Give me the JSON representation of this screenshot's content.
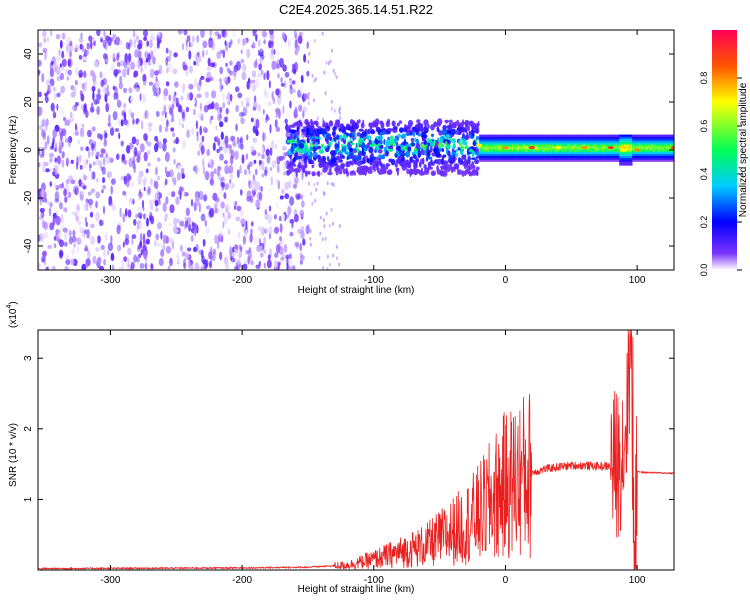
{
  "title": "C2E4.2025.365.14.51.R22",
  "chart_data": [
    {
      "type": "heatmap",
      "xlabel": "Height of straight line (km)",
      "ylabel": "Frequency (Hz)",
      "xlim": [
        -355,
        128
      ],
      "ylim": [
        -50,
        50
      ],
      "xticks": [
        -300,
        -200,
        -100,
        0,
        100
      ],
      "yticks": [
        -40,
        -20,
        0,
        20,
        40
      ],
      "colorbar": {
        "label": "Normalized spectral amplitude",
        "range": [
          0,
          1
        ],
        "ticks": [
          "0.0",
          "0.2",
          "0.4",
          "0.6",
          "0.8"
        ],
        "colors": [
          "#ffffff",
          "#5500ff",
          "#0000ff",
          "#00ccff",
          "#00ff55",
          "#ffff00",
          "#ff6600",
          "#ff0044"
        ]
      },
      "regions": [
        {
          "x_range": [
            -355,
            -150
          ],
          "freq_range": [
            -50,
            50
          ],
          "description_level": "low",
          "amplitude_max": 0.12
        },
        {
          "x_range": [
            -165,
            -20
          ],
          "freq_range": [
            -10,
            12
          ],
          "amplitude_max": 0.5
        },
        {
          "x_range": [
            -20,
            128
          ],
          "freq_range": [
            -5,
            5
          ],
          "amplitude_max": 0.95
        }
      ],
      "ridge": {
        "x": [
          -20,
          0,
          20,
          40,
          60,
          80,
          90,
          100,
          128
        ],
        "freq": [
          2,
          1,
          1,
          1,
          1,
          1,
          0,
          0,
          1
        ]
      }
    },
    {
      "type": "line",
      "xlabel": "Height of straight line (km)",
      "ylabel": "SNR (10 * v/v)",
      "yscale_label": "(x10",
      "yscale_exp": "4",
      "xlim": [
        -355,
        128
      ],
      "ylim": [
        0,
        3.4
      ],
      "xticks": [
        -300,
        -200,
        -100,
        0,
        100
      ],
      "yticks": [
        1,
        2,
        3
      ],
      "color": "#e8201f",
      "series": [
        {
          "x": [
            -355,
            -200,
            -150,
            -120,
            -100,
            -80,
            -60,
            -50,
            -40,
            -30,
            -20,
            -10,
            0,
            10,
            20,
            30,
            40,
            50,
            60,
            70,
            80,
            85,
            90,
            92,
            95,
            98,
            100,
            105,
            110,
            128
          ],
          "values": [
            0.02,
            0.03,
            0.04,
            0.07,
            0.15,
            0.25,
            0.35,
            0.45,
            0.55,
            0.65,
            0.8,
            1.0,
            1.2,
            1.3,
            1.38,
            1.43,
            1.46,
            1.48,
            1.48,
            1.47,
            1.47,
            1.5,
            1.8,
            2.2,
            3.3,
            0.2,
            1.4,
            1.38,
            1.38,
            1.37
          ]
        }
      ]
    }
  ]
}
